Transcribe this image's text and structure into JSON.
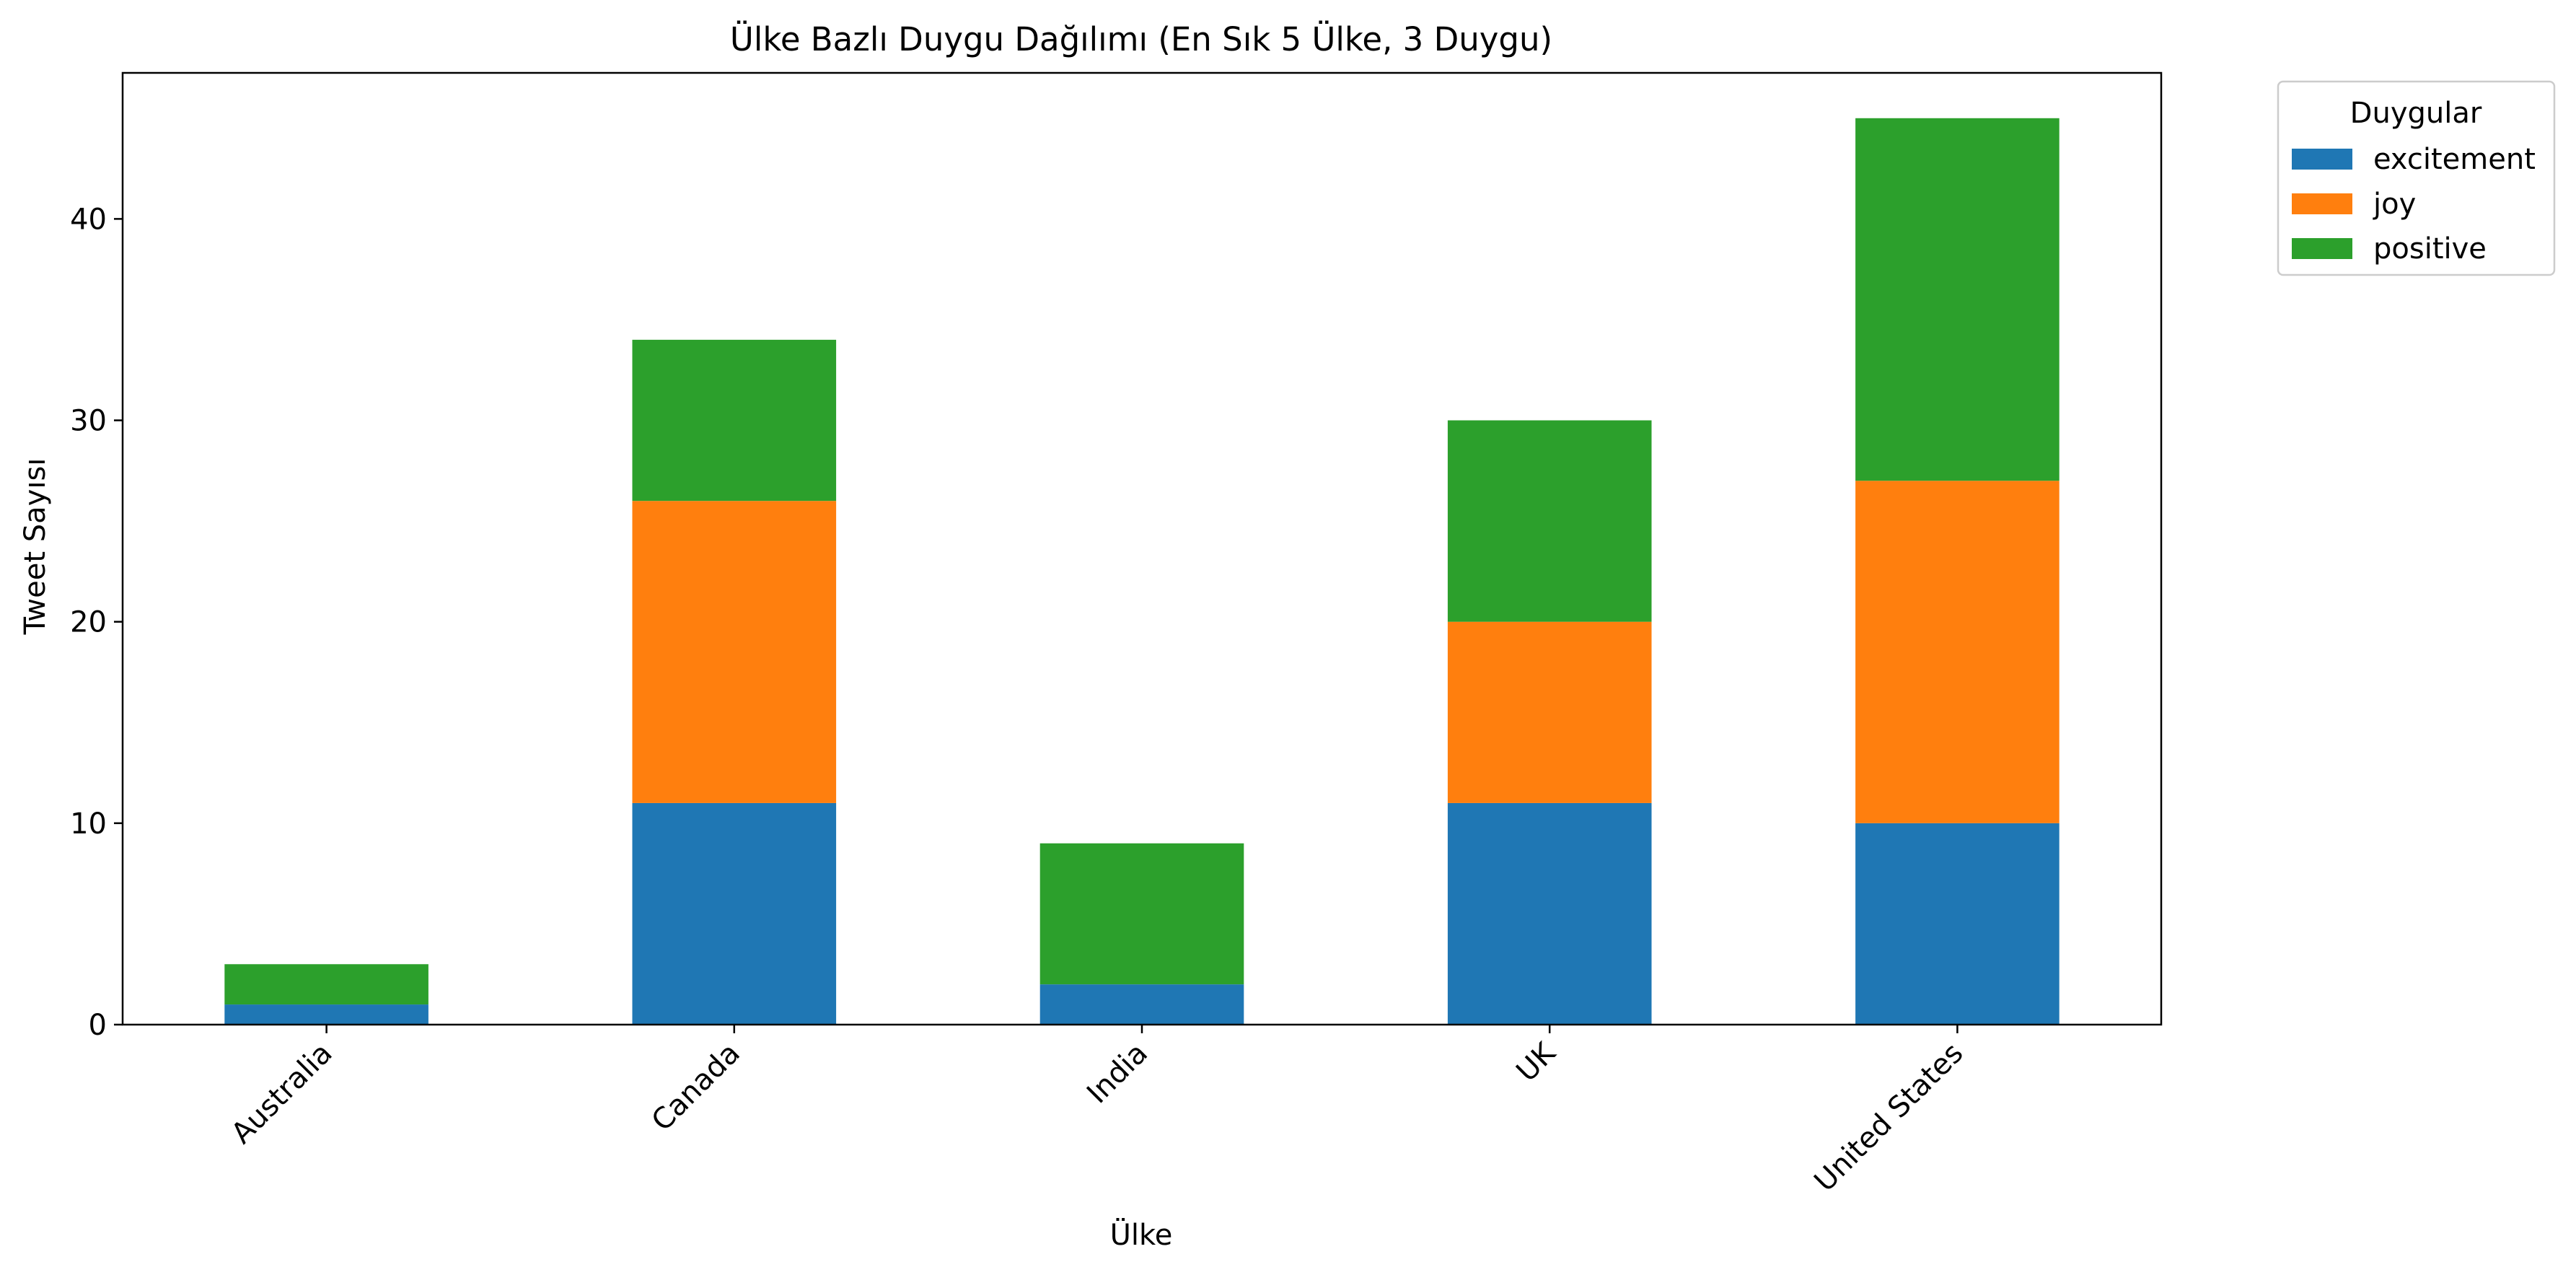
{
  "chart_data": {
    "type": "bar",
    "stacked": true,
    "title": "Ülke Bazlı Duygu Dağılımı (En Sık 5 Ülke, 3 Duygu)",
    "xlabel": "Ülke",
    "ylabel": "Tweet Sayısı",
    "categories": [
      "Australia",
      "Canada",
      "India",
      "UK",
      "United States"
    ],
    "series": [
      {
        "name": "excitement",
        "color": "#1f77b4",
        "values": [
          1,
          11,
          2,
          11,
          10
        ]
      },
      {
        "name": "joy",
        "color": "#ff7f0e",
        "values": [
          0,
          15,
          0,
          9,
          17
        ]
      },
      {
        "name": "positive",
        "color": "#2ca02c",
        "values": [
          2,
          8,
          7,
          10,
          18
        ]
      }
    ],
    "ylim": [
      0,
      47.25
    ],
    "yticks": [
      0,
      10,
      20,
      30,
      40
    ],
    "grid": false,
    "legend": {
      "title": "Duygular",
      "placement": "outside-top-right"
    }
  }
}
